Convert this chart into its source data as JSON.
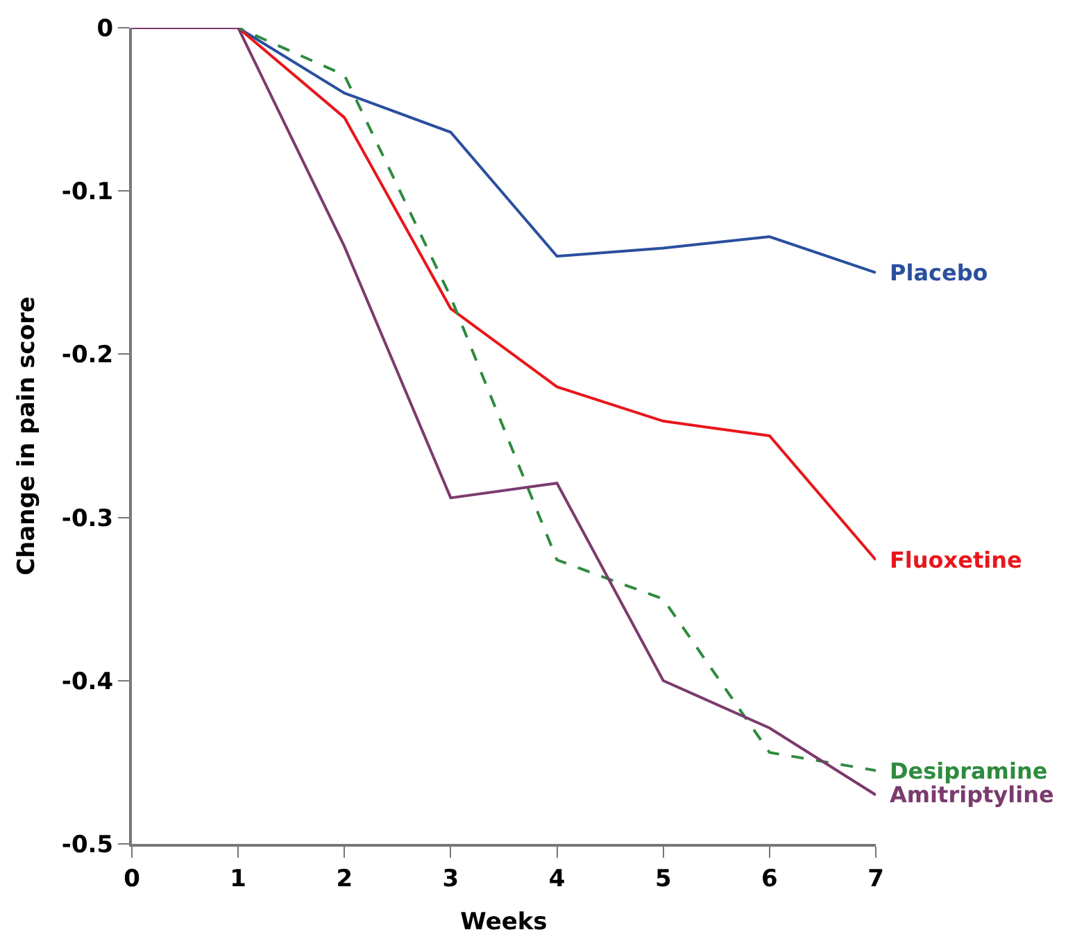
{
  "chart_data": {
    "type": "line",
    "xlabel": "Weeks",
    "ylabel": "Change in pain score",
    "x": [
      0,
      1,
      2,
      3,
      4,
      5,
      6,
      7
    ],
    "xlim": [
      0,
      7
    ],
    "xticks": [
      0,
      1,
      2,
      3,
      4,
      5,
      6,
      7
    ],
    "ylim": [
      -0.5,
      0
    ],
    "yticks": [
      -0.5,
      -0.4,
      -0.3,
      -0.2,
      -0.1,
      0
    ],
    "legend": false,
    "marker": "none",
    "series": [
      {
        "name": "Placebo",
        "color": "#2a4f9e",
        "line_style": "solid",
        "values": [
          0,
          0,
          -0.04,
          -0.064,
          -0.14,
          -0.135,
          -0.128,
          -0.15
        ]
      },
      {
        "name": "Fluoxetine",
        "color": "#e8161b",
        "line_style": "solid",
        "values": [
          0,
          0,
          -0.055,
          -0.172,
          -0.22,
          -0.241,
          -0.25,
          -0.326
        ]
      },
      {
        "name": "Desipramine",
        "color": "#2e8b3e",
        "line_style": "dashed",
        "values": [
          0,
          0,
          -0.029,
          -0.165,
          -0.326,
          -0.35,
          -0.444,
          -0.455
        ]
      },
      {
        "name": "Amitriptyline",
        "color": "#7b3b6e",
        "line_style": "solid",
        "values": [
          0,
          0,
          -0.134,
          -0.288,
          -0.279,
          -0.4,
          -0.429,
          -0.47
        ]
      }
    ]
  }
}
